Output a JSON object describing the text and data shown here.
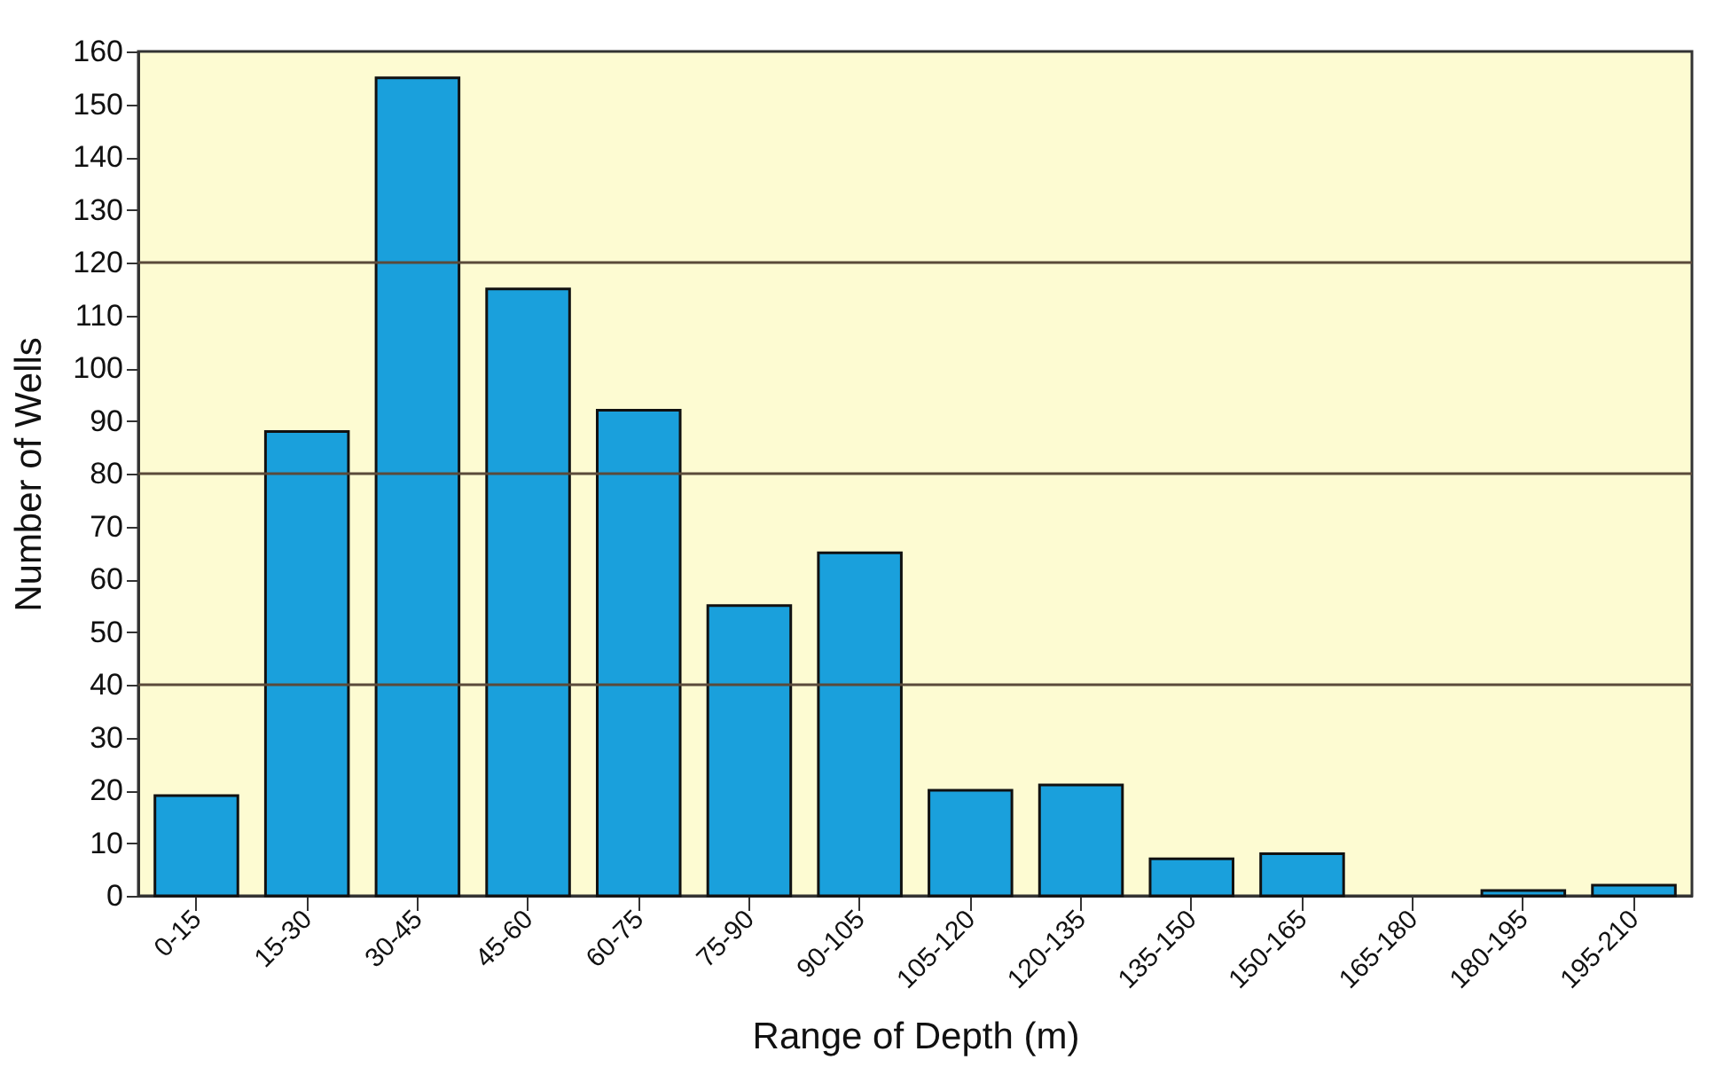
{
  "chart_data": {
    "type": "bar",
    "xlabel": "Range of Depth (m)",
    "ylabel": "Number of Wells",
    "categories": [
      "0-15",
      "15-30",
      "30-45",
      "45-60",
      "60-75",
      "75-90",
      "90-105",
      "105-120",
      "120-135",
      "135-150",
      "150-165",
      "165-180",
      "180-195",
      "195-210"
    ],
    "values": [
      19,
      88,
      155,
      115,
      92,
      55,
      65,
      20,
      21,
      7,
      8,
      0,
      1,
      2
    ],
    "color": "#1aa0dc",
    "ylim": [
      0,
      160
    ],
    "yticks": [
      0,
      10,
      20,
      30,
      40,
      50,
      60,
      70,
      80,
      90,
      100,
      110,
      120,
      130,
      140,
      150,
      160
    ],
    "grid": false,
    "ref_lines": [
      {
        "axis": "y",
        "value": 40,
        "color": "#5a4a3a"
      },
      {
        "axis": "y",
        "value": 80,
        "color": "#5a4a3a"
      },
      {
        "axis": "y",
        "value": 120,
        "color": "#5a4a3a"
      }
    ]
  }
}
